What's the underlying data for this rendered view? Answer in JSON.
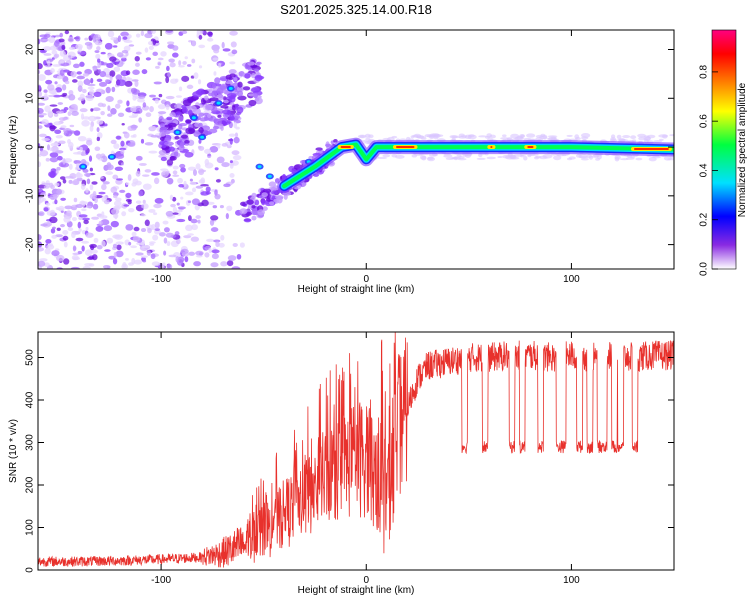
{
  "title": "S201.2025.325.14.00.R18",
  "chart_data": [
    {
      "type": "heatmap",
      "xlabel": "Height of straight line (km)",
      "ylabel": "Frequency (Hz)",
      "xlim": [
        -160,
        150
      ],
      "ylim": [
        -25,
        24
      ],
      "xticks": [
        -100,
        0,
        100
      ],
      "yticks": [
        -20,
        -10,
        0,
        10,
        20
      ],
      "colorbar": {
        "label": "Normalized spectral amplitude",
        "range": [
          0,
          0.97
        ],
        "ticks": [
          0.0,
          0.2,
          0.4,
          0.6,
          0.8
        ],
        "colors": [
          "#ffffff",
          "#8a2be2",
          "#0000ff",
          "#00e0ff",
          "#00ff40",
          "#ffff00",
          "#ff8000",
          "#ff0000",
          "#ff0080"
        ]
      },
      "ridge": {
        "description": "bright narrow band near 0 Hz from about 0 to 150 km",
        "points": [
          {
            "x": -40,
            "f": -8
          },
          {
            "x": -25,
            "f": -4
          },
          {
            "x": -12,
            "f": 0
          },
          {
            "x": -5,
            "f": 0.5
          },
          {
            "x": 0,
            "f": -2.5
          },
          {
            "x": 5,
            "f": 0
          },
          {
            "x": 20,
            "f": 0
          },
          {
            "x": 60,
            "f": 0
          },
          {
            "x": 100,
            "f": 0
          },
          {
            "x": 150,
            "f": -0.5
          }
        ]
      }
    },
    {
      "type": "line",
      "xlabel": "Height of straight line (km)",
      "ylabel": "SNR (10 * v/v)",
      "xlim": [
        -160,
        150
      ],
      "ylim": [
        0,
        560
      ],
      "xticks": [
        -100,
        0,
        100
      ],
      "yticks": [
        0,
        100,
        200,
        300,
        400,
        500
      ],
      "color": "#e8312c",
      "series": [
        {
          "name": "SNR",
          "x": [
            -160,
            -140,
            -120,
            -100,
            -80,
            -70,
            -60,
            -50,
            -40,
            -30,
            -20,
            -10,
            0,
            5,
            10,
            15,
            20,
            25,
            30,
            40,
            50,
            60,
            70,
            80,
            90,
            100,
            110,
            120,
            130,
            140,
            150
          ],
          "y": [
            20,
            20,
            22,
            25,
            30,
            40,
            60,
            90,
            130,
            170,
            220,
            250,
            270,
            230,
            190,
            330,
            380,
            450,
            480,
            490,
            500,
            500,
            505,
            505,
            500,
            505,
            500,
            505,
            500,
            505,
            505
          ]
        }
      ],
      "dropouts": {
        "description": "periodic drops to about 280-300 between ~50 and ~135 km",
        "level": 290,
        "x_positions": [
          48,
          58,
          71,
          76,
          85,
          94,
          96,
          104,
          109,
          114,
          116,
          121,
          124,
          131
        ]
      }
    }
  ]
}
